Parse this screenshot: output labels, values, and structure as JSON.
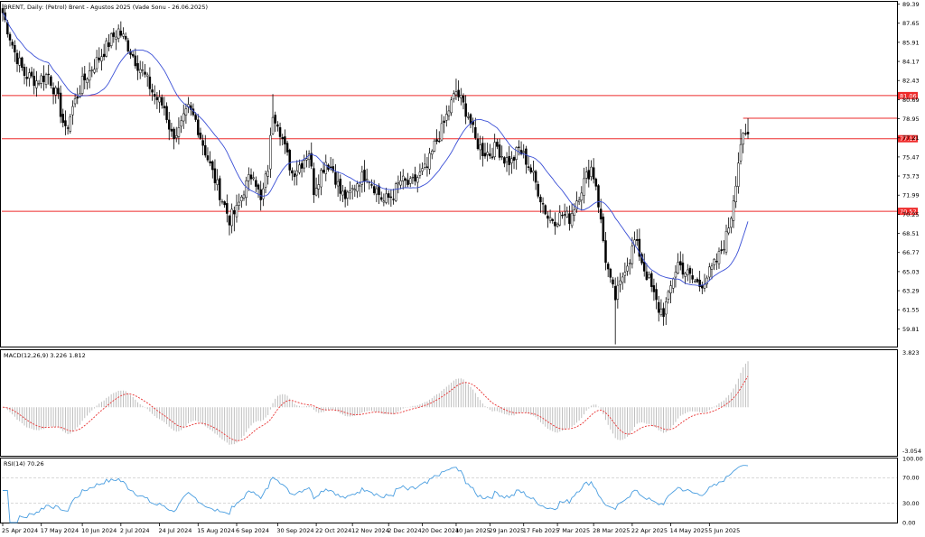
{
  "chart_data": {
    "title": "BRENT, Daily:  (Petrol) Brent - Agustos 2025 (Vade Sonu - 26.06.2025)",
    "type": "candlestick",
    "colors": {
      "bull_candle": "#ffffff",
      "bear_candle": "#000000",
      "candle_outline": "#000000",
      "moving_average": "#3a4fd6",
      "horizontal_level": "#ee2b2b",
      "macd_signal": "#e83030",
      "macd_histogram": "#b8b8b8",
      "rsi_line": "#4a9ee0",
      "rsi_guides": "#c0c0c0"
    },
    "price_axis": {
      "min": 58.2,
      "max": 89.6,
      "ticks": [
        "89.39",
        "87.65",
        "85.91",
        "84.17",
        "82.43",
        "80.69",
        "78.95",
        "77.21",
        "75.47",
        "73.73",
        "71.99",
        "70.25",
        "68.51",
        "66.77",
        "65.03",
        "63.29",
        "61.55",
        "59.81"
      ]
    },
    "levels": [
      {
        "value": 81.06,
        "label": "81.06"
      },
      {
        "value": 77.13,
        "label": "77.13"
      },
      {
        "value": 70.52,
        "label": "70.52"
      }
    ],
    "last_price_line": 79.0,
    "date_labels": [
      {
        "label": "25 Apr 2024",
        "index": 0
      },
      {
        "label": "17 May 2024",
        "index": 16
      },
      {
        "label": "10 Jun 2024",
        "index": 33
      },
      {
        "label": "2 Jul 2024",
        "index": 49
      },
      {
        "label": "24 Jul 2024",
        "index": 65
      },
      {
        "label": "15 Aug 2024",
        "index": 81
      },
      {
        "label": "6 Sep 2024",
        "index": 97
      },
      {
        "label": "30 Sep 2024",
        "index": 114
      },
      {
        "label": "22 Oct 2024",
        "index": 130
      },
      {
        "label": "12 Nov 2024",
        "index": 145
      },
      {
        "label": "2 Dec 2024",
        "index": 160
      },
      {
        "label": "20 Dec 2024",
        "index": 174
      },
      {
        "label": "10 Jan 2025",
        "index": 188
      },
      {
        "label": "29 Jan 2025",
        "index": 202
      },
      {
        "label": "17 Feb 2025",
        "index": 216
      },
      {
        "label": "7 Mar 2025",
        "index": 230
      },
      {
        "label": "28 Mar 2025",
        "index": 245
      },
      {
        "label": "22 Apr 2025",
        "index": 261
      },
      {
        "label": "14 May 2025",
        "index": 277
      },
      {
        "label": "5 Jun 2025",
        "index": 293
      }
    ],
    "bar_count": 310,
    "anchors": [
      [
        0,
        88.6
      ],
      [
        5,
        85.0
      ],
      [
        9,
        83.0
      ],
      [
        14,
        82.4
      ],
      [
        19,
        83.0
      ],
      [
        23,
        80.6
      ],
      [
        26,
        77.7
      ],
      [
        29,
        80.0
      ],
      [
        33,
        82.2
      ],
      [
        37,
        83.6
      ],
      [
        41,
        84.8
      ],
      [
        45,
        86.2
      ],
      [
        48,
        87.0
      ],
      [
        51,
        86.0
      ],
      [
        55,
        84.3
      ],
      [
        59,
        82.8
      ],
      [
        63,
        81.0
      ],
      [
        67,
        80.0
      ],
      [
        70,
        77.5
      ],
      [
        73,
        77.8
      ],
      [
        77,
        79.8
      ],
      [
        80,
        78.8
      ],
      [
        84,
        76.0
      ],
      [
        87,
        74.0
      ],
      [
        90,
        72.2
      ],
      [
        94,
        69.8
      ],
      [
        97,
        70.6
      ],
      [
        100,
        72.5
      ],
      [
        104,
        74.2
      ],
      [
        107,
        71.3
      ],
      [
        110,
        74.5
      ],
      [
        112,
        79.5
      ],
      [
        114,
        78.8
      ],
      [
        117,
        76.2
      ],
      [
        120,
        74.0
      ],
      [
        124,
        75.0
      ],
      [
        127,
        76.0
      ],
      [
        129,
        72.5
      ],
      [
        131,
        73.6
      ],
      [
        134,
        75.1
      ],
      [
        137,
        74.3
      ],
      [
        140,
        72.2
      ],
      [
        143,
        71.7
      ],
      [
        147,
        73.2
      ],
      [
        151,
        74.0
      ],
      [
        154,
        72.8
      ],
      [
        158,
        71.4
      ],
      [
        162,
        72.1
      ],
      [
        165,
        73.3
      ],
      [
        169,
        72.9
      ],
      [
        172,
        73.6
      ],
      [
        176,
        74.5
      ],
      [
        179,
        76.5
      ],
      [
        182,
        77.9
      ],
      [
        185,
        79.8
      ],
      [
        188,
        81.4
      ],
      [
        190,
        80.6
      ],
      [
        193,
        79.3
      ],
      [
        196,
        77.0
      ],
      [
        199,
        76.0
      ],
      [
        202,
        75.8
      ],
      [
        205,
        76.4
      ],
      [
        208,
        75.3
      ],
      [
        211,
        75.0
      ],
      [
        214,
        76.2
      ],
      [
        217,
        75.2
      ],
      [
        220,
        73.7
      ],
      [
        223,
        71.8
      ],
      [
        226,
        70.0
      ],
      [
        229,
        69.8
      ],
      [
        232,
        70.2
      ],
      [
        235,
        69.9
      ],
      [
        238,
        71.6
      ],
      [
        241,
        73.2
      ],
      [
        244,
        74.5
      ],
      [
        246,
        73.0
      ],
      [
        248,
        69.5
      ],
      [
        250,
        66.2
      ],
      [
        252,
        64.0
      ],
      [
        254,
        62.6
      ],
      [
        256,
        63.8
      ],
      [
        258,
        65.5
      ],
      [
        260,
        66.3
      ],
      [
        262,
        67.8
      ],
      [
        264,
        66.7
      ],
      [
        266,
        65.3
      ],
      [
        268,
        64.2
      ],
      [
        270,
        62.8
      ],
      [
        272,
        61.6
      ],
      [
        274,
        61.4
      ],
      [
        276,
        62.6
      ],
      [
        278,
        64.6
      ],
      [
        280,
        65.8
      ],
      [
        283,
        65.0
      ],
      [
        286,
        64.3
      ],
      [
        289,
        63.8
      ],
      [
        292,
        64.6
      ],
      [
        294,
        65.2
      ],
      [
        297,
        66.4
      ],
      [
        300,
        68.2
      ],
      [
        302,
        70.2
      ],
      [
        304,
        73.4
      ],
      [
        306,
        76.8
      ],
      [
        308,
        77.2
      ],
      [
        310,
        77.6
      ]
    ],
    "macd": {
      "label": "MACD(12,26,9) 3.226 1.812",
      "ticks": [
        "3.823",
        "-3.054"
      ],
      "min": -3.4,
      "max": 4.0
    },
    "rsi": {
      "label": "RSI(14) 70.26",
      "ticks": [
        "100.00",
        "70.00",
        "30.00",
        "0.00"
      ],
      "levels": [
        70,
        30
      ]
    }
  }
}
